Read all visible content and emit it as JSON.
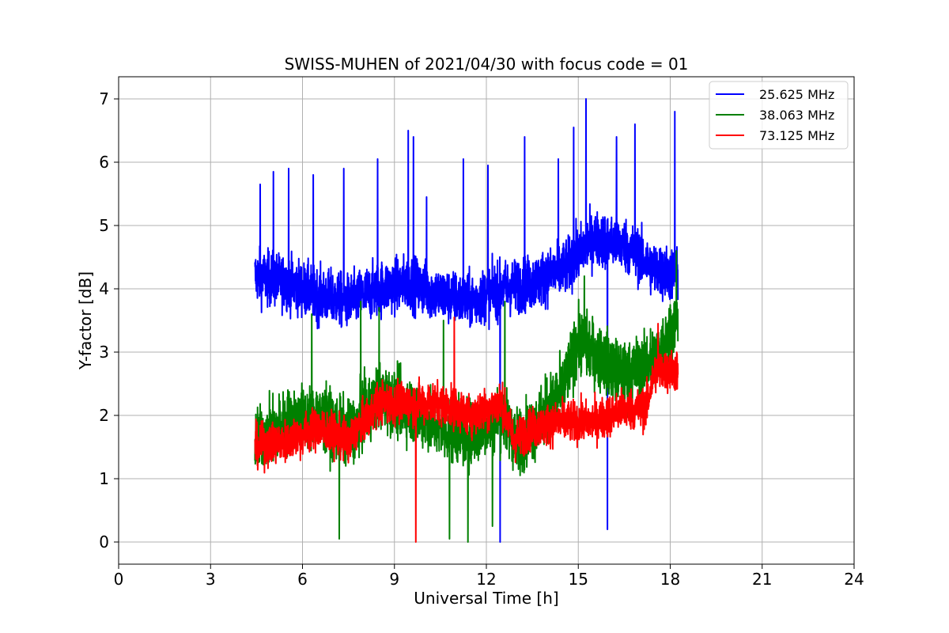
{
  "chart_data": {
    "type": "line",
    "title": "SWISS-MUHEN of 2021/04/30 with focus code = 01",
    "xlabel": "Universal Time [h]",
    "ylabel": "Y-factor [dB]",
    "xlim": [
      0,
      24
    ],
    "ylim": [
      -0.35,
      7.35
    ],
    "xticks": [
      0,
      3,
      6,
      9,
      12,
      15,
      18,
      21,
      24
    ],
    "yticks": [
      0,
      1,
      2,
      3,
      4,
      5,
      6,
      7
    ],
    "grid": true,
    "legend_position": "top-right",
    "x_range_data": [
      4.45,
      18.25
    ],
    "series": [
      {
        "name": "25.625 MHz",
        "color": "#0000ff",
        "trend": [
          [
            4.5,
            4.2
          ],
          [
            5.5,
            4.1
          ],
          [
            6.5,
            3.9
          ],
          [
            7.5,
            3.8
          ],
          [
            8.5,
            4.0
          ],
          [
            9.5,
            4.1
          ],
          [
            10.5,
            3.9
          ],
          [
            11.5,
            3.8
          ],
          [
            12.5,
            4.0
          ],
          [
            13.5,
            4.1
          ],
          [
            14.5,
            4.3
          ],
          [
            15.5,
            4.8
          ],
          [
            16.5,
            4.7
          ],
          [
            17.5,
            4.3
          ],
          [
            18.2,
            4.2
          ]
        ],
        "spikes": [
          [
            4.62,
            5.65
          ],
          [
            5.05,
            5.85
          ],
          [
            5.55,
            5.9
          ],
          [
            6.35,
            5.8
          ],
          [
            7.35,
            5.9
          ],
          [
            8.45,
            6.05
          ],
          [
            9.45,
            6.5
          ],
          [
            9.62,
            6.4
          ],
          [
            10.05,
            5.45
          ],
          [
            11.25,
            6.05
          ],
          [
            12.05,
            5.95
          ],
          [
            13.25,
            6.4
          ],
          [
            14.35,
            6.05
          ],
          [
            14.85,
            6.55
          ],
          [
            15.25,
            7.0
          ],
          [
            16.25,
            6.4
          ],
          [
            16.85,
            6.6
          ],
          [
            18.15,
            6.8
          ]
        ],
        "dips": [
          [
            12.45,
            0.0
          ],
          [
            15.95,
            0.2
          ]
        ]
      },
      {
        "name": "38.063 MHz",
        "color": "#008000",
        "trend": [
          [
            4.5,
            1.6
          ],
          [
            5.5,
            1.9
          ],
          [
            6.5,
            2.0
          ],
          [
            7.5,
            1.7
          ],
          [
            8.5,
            2.3
          ],
          [
            9.5,
            2.1
          ],
          [
            10.5,
            1.8
          ],
          [
            11.5,
            1.7
          ],
          [
            12.5,
            2.0
          ],
          [
            13.0,
            1.6
          ],
          [
            13.5,
            1.8
          ],
          [
            14.5,
            2.4
          ],
          [
            15.0,
            3.2
          ],
          [
            15.5,
            3.0
          ],
          [
            16.5,
            2.6
          ],
          [
            17.5,
            2.9
          ],
          [
            18.2,
            3.5
          ]
        ],
        "spikes": [
          [
            6.3,
            3.6
          ],
          [
            7.9,
            3.8
          ],
          [
            8.5,
            3.7
          ],
          [
            10.6,
            3.5
          ],
          [
            12.6,
            3.8
          ],
          [
            15.2,
            4.2
          ],
          [
            18.2,
            4.6
          ]
        ],
        "dips": [
          [
            7.2,
            0.05
          ],
          [
            10.8,
            0.05
          ],
          [
            11.4,
            0.0
          ],
          [
            12.2,
            0.25
          ]
        ]
      },
      {
        "name": "73.125 MHz",
        "color": "#ff0000",
        "trend": [
          [
            4.5,
            1.5
          ],
          [
            5.5,
            1.6
          ],
          [
            6.5,
            1.8
          ],
          [
            7.5,
            1.6
          ],
          [
            8.5,
            2.2
          ],
          [
            9.5,
            2.2
          ],
          [
            10.5,
            2.2
          ],
          [
            11.5,
            2.0
          ],
          [
            12.5,
            2.2
          ],
          [
            12.9,
            1.6
          ],
          [
            13.5,
            1.8
          ],
          [
            14.5,
            1.9
          ],
          [
            15.5,
            1.9
          ],
          [
            16.5,
            2.1
          ],
          [
            17.2,
            2.1
          ],
          [
            17.5,
            2.7
          ],
          [
            18.2,
            2.7
          ]
        ],
        "spikes": [
          [
            10.95,
            3.55
          ],
          [
            17.6,
            3.45
          ]
        ],
        "dips": [
          [
            9.7,
            0.0
          ]
        ]
      }
    ]
  }
}
